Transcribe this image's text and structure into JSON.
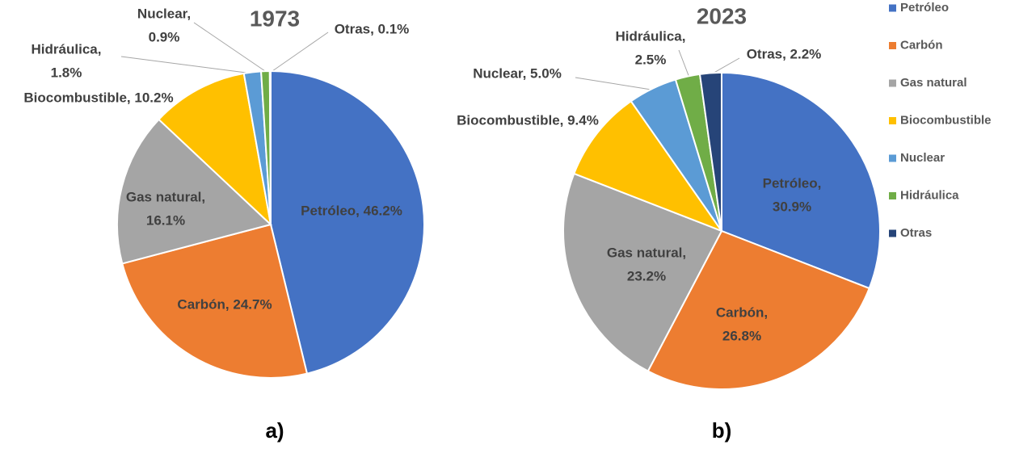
{
  "chart_data": [
    {
      "type": "pie",
      "title": "1973",
      "subtitle": "a)",
      "categories": [
        "Petróleo",
        "Carbón",
        "Gas natural",
        "Biocombustible",
        "Hidráulica",
        "Nuclear",
        "Otras"
      ],
      "values": [
        46.2,
        24.7,
        16.1,
        10.2,
        1.8,
        0.9,
        0.1
      ],
      "value_labels": [
        [
          "Petróleo, 46.2%"
        ],
        [
          "Carbón, 24.7%"
        ],
        [
          "Gas natural,",
          "16.1%"
        ],
        [
          "Biocombustible, 10.2%"
        ],
        [
          "Hidráulica,",
          "1.8%"
        ],
        [
          "Nuclear,",
          "0.9%"
        ],
        [
          "Otras, 0.1%"
        ]
      ],
      "colors": [
        "#4472c4",
        "#ed7d31",
        "#a5a5a5",
        "#ffc000",
        "#5b9bd5",
        "#70ad47",
        "#264478"
      ]
    },
    {
      "type": "pie",
      "title": "2023",
      "subtitle": "b)",
      "categories": [
        "Petróleo",
        "Carbón",
        "Gas natural",
        "Biocombustible",
        "Nuclear",
        "Hidráulica",
        "Otras"
      ],
      "values": [
        30.9,
        26.8,
        23.2,
        9.4,
        5.0,
        2.5,
        2.2
      ],
      "value_labels": [
        [
          "Petróleo,",
          "30.9%"
        ],
        [
          "Carbón,",
          "26.8%"
        ],
        [
          "Gas natural,",
          "23.2%"
        ],
        [
          "Biocombustible, 9.4%"
        ],
        [
          "Nuclear, 5.0%"
        ],
        [
          "Hidráulica,",
          "2.5%"
        ],
        [
          "Otras, 2.2%"
        ]
      ],
      "colors": [
        "#4472c4",
        "#ed7d31",
        "#a5a5a5",
        "#ffc000",
        "#5b9bd5",
        "#70ad47",
        "#264478"
      ],
      "legend": "right"
    }
  ]
}
